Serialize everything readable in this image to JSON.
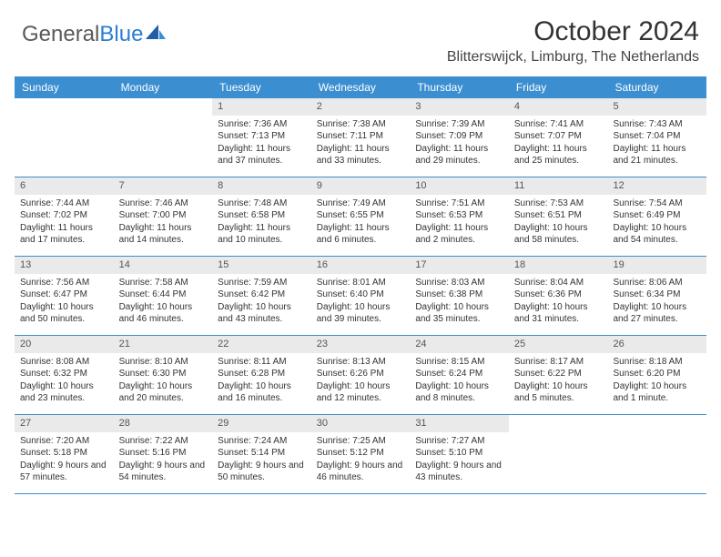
{
  "brand": {
    "part1": "General",
    "part2": "Blue"
  },
  "title": "October 2024",
  "location": "Blitterswijck, Limburg, The Netherlands",
  "accent_color": "#3b8ed0",
  "day_headers": [
    "Sunday",
    "Monday",
    "Tuesday",
    "Wednesday",
    "Thursday",
    "Friday",
    "Saturday"
  ],
  "weeks": [
    [
      {
        "n": "",
        "sr": "",
        "ss": "",
        "dl": ""
      },
      {
        "n": "",
        "sr": "",
        "ss": "",
        "dl": ""
      },
      {
        "n": "1",
        "sr": "Sunrise: 7:36 AM",
        "ss": "Sunset: 7:13 PM",
        "dl": "Daylight: 11 hours and 37 minutes."
      },
      {
        "n": "2",
        "sr": "Sunrise: 7:38 AM",
        "ss": "Sunset: 7:11 PM",
        "dl": "Daylight: 11 hours and 33 minutes."
      },
      {
        "n": "3",
        "sr": "Sunrise: 7:39 AM",
        "ss": "Sunset: 7:09 PM",
        "dl": "Daylight: 11 hours and 29 minutes."
      },
      {
        "n": "4",
        "sr": "Sunrise: 7:41 AM",
        "ss": "Sunset: 7:07 PM",
        "dl": "Daylight: 11 hours and 25 minutes."
      },
      {
        "n": "5",
        "sr": "Sunrise: 7:43 AM",
        "ss": "Sunset: 7:04 PM",
        "dl": "Daylight: 11 hours and 21 minutes."
      }
    ],
    [
      {
        "n": "6",
        "sr": "Sunrise: 7:44 AM",
        "ss": "Sunset: 7:02 PM",
        "dl": "Daylight: 11 hours and 17 minutes."
      },
      {
        "n": "7",
        "sr": "Sunrise: 7:46 AM",
        "ss": "Sunset: 7:00 PM",
        "dl": "Daylight: 11 hours and 14 minutes."
      },
      {
        "n": "8",
        "sr": "Sunrise: 7:48 AM",
        "ss": "Sunset: 6:58 PM",
        "dl": "Daylight: 11 hours and 10 minutes."
      },
      {
        "n": "9",
        "sr": "Sunrise: 7:49 AM",
        "ss": "Sunset: 6:55 PM",
        "dl": "Daylight: 11 hours and 6 minutes."
      },
      {
        "n": "10",
        "sr": "Sunrise: 7:51 AM",
        "ss": "Sunset: 6:53 PM",
        "dl": "Daylight: 11 hours and 2 minutes."
      },
      {
        "n": "11",
        "sr": "Sunrise: 7:53 AM",
        "ss": "Sunset: 6:51 PM",
        "dl": "Daylight: 10 hours and 58 minutes."
      },
      {
        "n": "12",
        "sr": "Sunrise: 7:54 AM",
        "ss": "Sunset: 6:49 PM",
        "dl": "Daylight: 10 hours and 54 minutes."
      }
    ],
    [
      {
        "n": "13",
        "sr": "Sunrise: 7:56 AM",
        "ss": "Sunset: 6:47 PM",
        "dl": "Daylight: 10 hours and 50 minutes."
      },
      {
        "n": "14",
        "sr": "Sunrise: 7:58 AM",
        "ss": "Sunset: 6:44 PM",
        "dl": "Daylight: 10 hours and 46 minutes."
      },
      {
        "n": "15",
        "sr": "Sunrise: 7:59 AM",
        "ss": "Sunset: 6:42 PM",
        "dl": "Daylight: 10 hours and 43 minutes."
      },
      {
        "n": "16",
        "sr": "Sunrise: 8:01 AM",
        "ss": "Sunset: 6:40 PM",
        "dl": "Daylight: 10 hours and 39 minutes."
      },
      {
        "n": "17",
        "sr": "Sunrise: 8:03 AM",
        "ss": "Sunset: 6:38 PM",
        "dl": "Daylight: 10 hours and 35 minutes."
      },
      {
        "n": "18",
        "sr": "Sunrise: 8:04 AM",
        "ss": "Sunset: 6:36 PM",
        "dl": "Daylight: 10 hours and 31 minutes."
      },
      {
        "n": "19",
        "sr": "Sunrise: 8:06 AM",
        "ss": "Sunset: 6:34 PM",
        "dl": "Daylight: 10 hours and 27 minutes."
      }
    ],
    [
      {
        "n": "20",
        "sr": "Sunrise: 8:08 AM",
        "ss": "Sunset: 6:32 PM",
        "dl": "Daylight: 10 hours and 23 minutes."
      },
      {
        "n": "21",
        "sr": "Sunrise: 8:10 AM",
        "ss": "Sunset: 6:30 PM",
        "dl": "Daylight: 10 hours and 20 minutes."
      },
      {
        "n": "22",
        "sr": "Sunrise: 8:11 AM",
        "ss": "Sunset: 6:28 PM",
        "dl": "Daylight: 10 hours and 16 minutes."
      },
      {
        "n": "23",
        "sr": "Sunrise: 8:13 AM",
        "ss": "Sunset: 6:26 PM",
        "dl": "Daylight: 10 hours and 12 minutes."
      },
      {
        "n": "24",
        "sr": "Sunrise: 8:15 AM",
        "ss": "Sunset: 6:24 PM",
        "dl": "Daylight: 10 hours and 8 minutes."
      },
      {
        "n": "25",
        "sr": "Sunrise: 8:17 AM",
        "ss": "Sunset: 6:22 PM",
        "dl": "Daylight: 10 hours and 5 minutes."
      },
      {
        "n": "26",
        "sr": "Sunrise: 8:18 AM",
        "ss": "Sunset: 6:20 PM",
        "dl": "Daylight: 10 hours and 1 minute."
      }
    ],
    [
      {
        "n": "27",
        "sr": "Sunrise: 7:20 AM",
        "ss": "Sunset: 5:18 PM",
        "dl": "Daylight: 9 hours and 57 minutes."
      },
      {
        "n": "28",
        "sr": "Sunrise: 7:22 AM",
        "ss": "Sunset: 5:16 PM",
        "dl": "Daylight: 9 hours and 54 minutes."
      },
      {
        "n": "29",
        "sr": "Sunrise: 7:24 AM",
        "ss": "Sunset: 5:14 PM",
        "dl": "Daylight: 9 hours and 50 minutes."
      },
      {
        "n": "30",
        "sr": "Sunrise: 7:25 AM",
        "ss": "Sunset: 5:12 PM",
        "dl": "Daylight: 9 hours and 46 minutes."
      },
      {
        "n": "31",
        "sr": "Sunrise: 7:27 AM",
        "ss": "Sunset: 5:10 PM",
        "dl": "Daylight: 9 hours and 43 minutes."
      },
      {
        "n": "",
        "sr": "",
        "ss": "",
        "dl": ""
      },
      {
        "n": "",
        "sr": "",
        "ss": "",
        "dl": ""
      }
    ]
  ]
}
